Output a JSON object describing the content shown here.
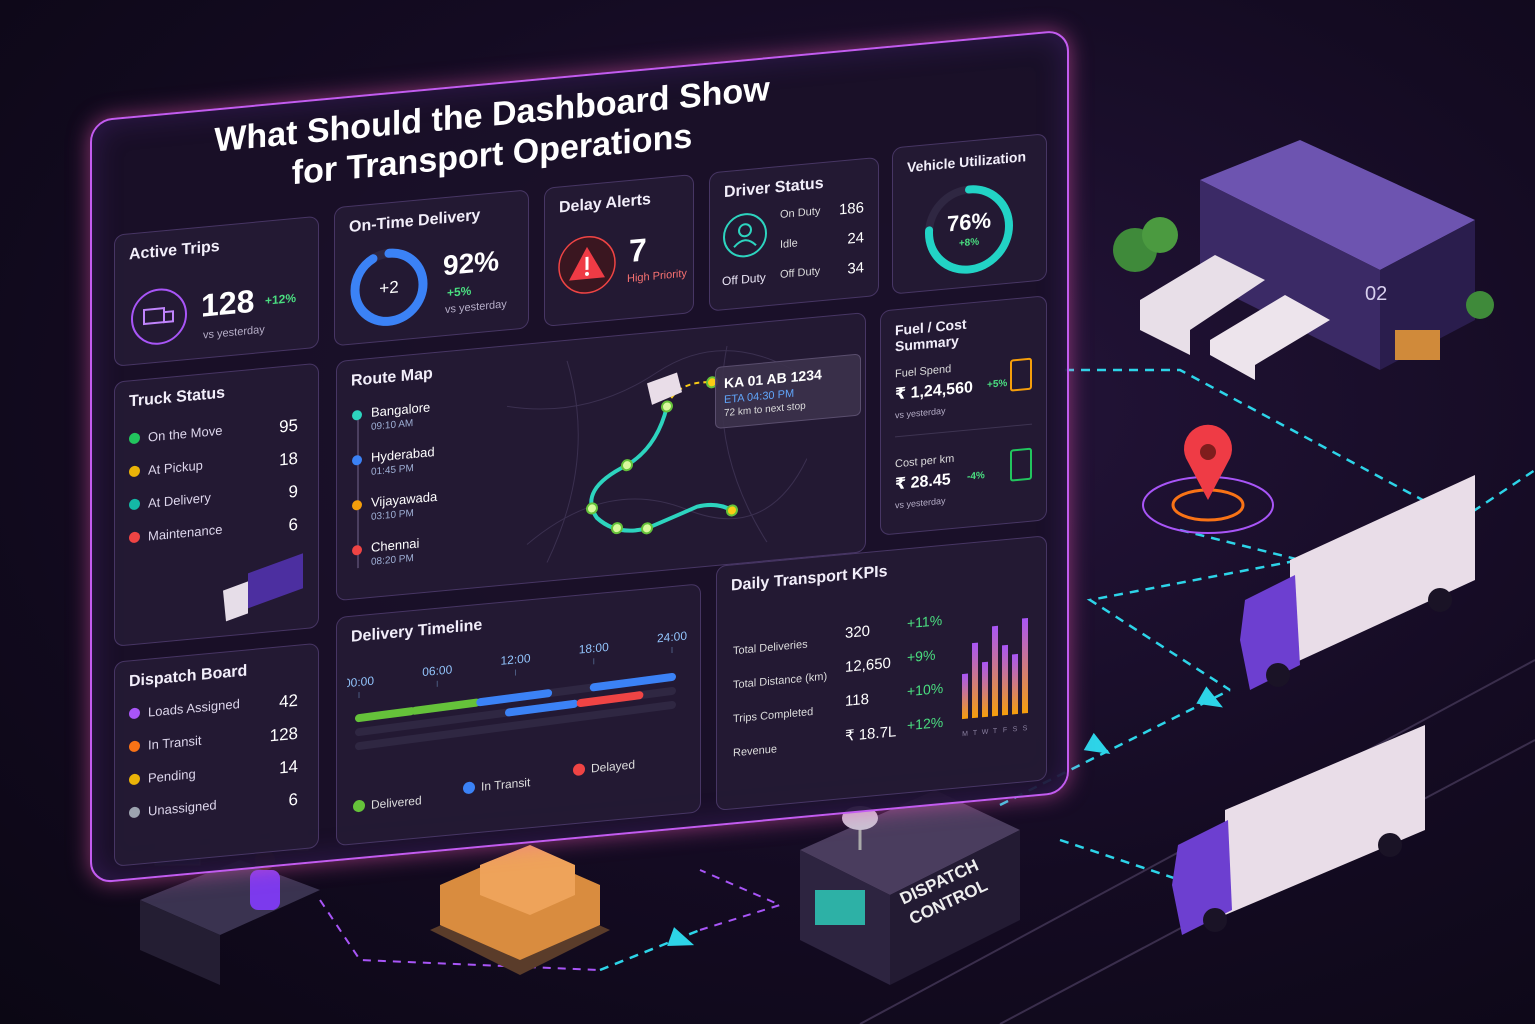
{
  "title": {
    "line1": "What Should the Dashboard Show",
    "line2": "for Transport Operations"
  },
  "active_trips": {
    "title": "Active Trips",
    "value": "128",
    "change": "+12%",
    "note": "vs yesterday"
  },
  "on_time_delivery": {
    "title": "On-Time Delivery",
    "gauge": {
      "value": 92,
      "label": "92%"
    },
    "center": "+2",
    "change": "+5%",
    "note": "vs yesterday",
    "color": "#3b82f6"
  },
  "delay_alerts": {
    "title": "Delay Alerts",
    "value": "7",
    "note": "High Priority"
  },
  "driver_status": {
    "title": "Driver Status",
    "icon_label": "Off Duty",
    "rows": [
      {
        "label": "On Duty",
        "value": "186"
      },
      {
        "label": "Idle",
        "value": "24"
      },
      {
        "label": "Off Duty",
        "value": "34"
      }
    ]
  },
  "vehicle_utilization": {
    "title": "Vehicle Utilization",
    "gauge": {
      "value": 76,
      "label": "76%"
    },
    "change": "+8%",
    "color": "#22d3c5"
  },
  "truck_status": {
    "title": "Truck Status",
    "rows": [
      {
        "label": "On the Move",
        "value": "95",
        "color": "#22c55e"
      },
      {
        "label": "At Pickup",
        "value": "18",
        "color": "#eab308"
      },
      {
        "label": "At Delivery",
        "value": "9",
        "color": "#14b8a6"
      },
      {
        "label": "Maintenance",
        "value": "6",
        "color": "#ef4444"
      }
    ]
  },
  "route_map": {
    "title": "Route Map",
    "stops": [
      {
        "name": "Bangalore",
        "time": "09:10 AM",
        "color": "#2dd4bf"
      },
      {
        "name": "Hyderabad",
        "time": "01:45 PM",
        "color": "#3b82f6"
      },
      {
        "name": "Vijayawada",
        "time": "03:10 PM",
        "color": "#f59e0b"
      },
      {
        "name": "Chennai",
        "time": "08:20 PM",
        "color": "#ef4444"
      }
    ],
    "vehicle": {
      "id": "KA 01 AB 1234",
      "eta": "ETA 04:30 PM",
      "distance": "72 km to next stop"
    }
  },
  "fuel_cost": {
    "title": "Fuel / Cost Summary",
    "items": [
      {
        "label": "Fuel Spend",
        "value": "₹ 1,24,560",
        "change": "+5%",
        "note": "vs yesterday"
      },
      {
        "label": "Cost per km",
        "value": "₹ 28.45",
        "change": "-4%",
        "note": "vs yesterday"
      }
    ]
  },
  "dispatch_board": {
    "title": "Dispatch Board",
    "rows": [
      {
        "label": "Loads Assigned",
        "value": "42",
        "color": "#a855f7"
      },
      {
        "label": "In Transit",
        "value": "128",
        "color": "#f97316"
      },
      {
        "label": "Pending",
        "value": "14",
        "color": "#eab308"
      },
      {
        "label": "Unassigned",
        "value": "6",
        "color": "#9ca3af"
      }
    ]
  },
  "delivery_timeline": {
    "title": "Delivery Timeline",
    "ticks": [
      {
        "value": 0,
        "label": "00:00"
      },
      {
        "value": 6,
        "label": "06:00"
      },
      {
        "value": 12,
        "label": "12:00"
      },
      {
        "value": 18,
        "label": "18:00"
      },
      {
        "value": 24,
        "label": "24:00"
      }
    ],
    "legend": [
      {
        "name": "Delivered",
        "color": "#65c23a"
      },
      {
        "name": "In Transit",
        "color": "#3b82f6"
      },
      {
        "name": "Delayed",
        "color": "#ef4444"
      }
    ],
    "bars": [
      {
        "lane": 0,
        "series": 0,
        "start": 0,
        "end": 4
      },
      {
        "lane": 0,
        "series": 0,
        "start": 4.3,
        "end": 9
      },
      {
        "lane": 0,
        "series": 1,
        "start": 9.3,
        "end": 14.5
      },
      {
        "lane": 0,
        "series": 1,
        "start": 18,
        "end": 24
      },
      {
        "lane": 1,
        "series": 1,
        "start": 11.5,
        "end": 16.5
      },
      {
        "lane": 1,
        "series": 2,
        "start": 17,
        "end": 21.5
      }
    ]
  },
  "kpis": {
    "title": "Daily Transport KPIs",
    "rows": [
      {
        "label": "Total Deliveries",
        "value": "320",
        "change": "+11%"
      },
      {
        "label": "Total Distance (km)",
        "value": "12,650",
        "change": "+9%"
      },
      {
        "label": "Trips Completed",
        "value": "118",
        "change": "+10%"
      },
      {
        "label": "Revenue",
        "value": "₹ 18.7L",
        "change": "+12%"
      }
    ],
    "chart": {
      "days": [
        "M",
        "T",
        "W",
        "T",
        "F",
        "S",
        "S"
      ],
      "values": [
        45,
        75,
        55,
        90,
        70,
        60,
        95
      ]
    }
  },
  "scene": {
    "warehouse_number": "02",
    "dispatch_line1": "DISPATCH",
    "dispatch_line2": "CONTROL"
  }
}
